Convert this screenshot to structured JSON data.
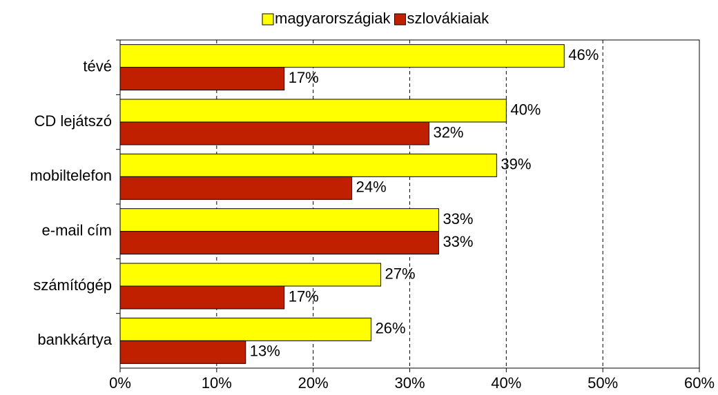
{
  "chart_data": {
    "type": "bar",
    "orientation": "horizontal",
    "categories": [
      "tévé",
      "CD lejátszó",
      "mobiltelefon",
      "e-mail cím",
      "számítógép",
      "bankkártya"
    ],
    "series": [
      {
        "name": "magyarországiak",
        "color": "#ffff00",
        "values": [
          46,
          40,
          39,
          33,
          27,
          26
        ],
        "value_labels": [
          "46%",
          "40%",
          "39%",
          "33%",
          "27%",
          "26%"
        ]
      },
      {
        "name": "szlovákiaiak",
        "color": "#c02000",
        "values": [
          17,
          32,
          24,
          33,
          17,
          13
        ],
        "value_labels": [
          "17%",
          "32%",
          "24%",
          "33%",
          "17%",
          "13%"
        ]
      }
    ],
    "xlim": [
      0,
      60
    ],
    "xticks": [
      {
        "value": 0,
        "label": "0%"
      },
      {
        "value": 10,
        "label": "10%"
      },
      {
        "value": 20,
        "label": "20%"
      },
      {
        "value": 30,
        "label": "30%"
      },
      {
        "value": 40,
        "label": "40%"
      },
      {
        "value": 50,
        "label": "50%"
      },
      {
        "value": 60,
        "label": "60%"
      }
    ],
    "grid": true,
    "legend": "top"
  }
}
